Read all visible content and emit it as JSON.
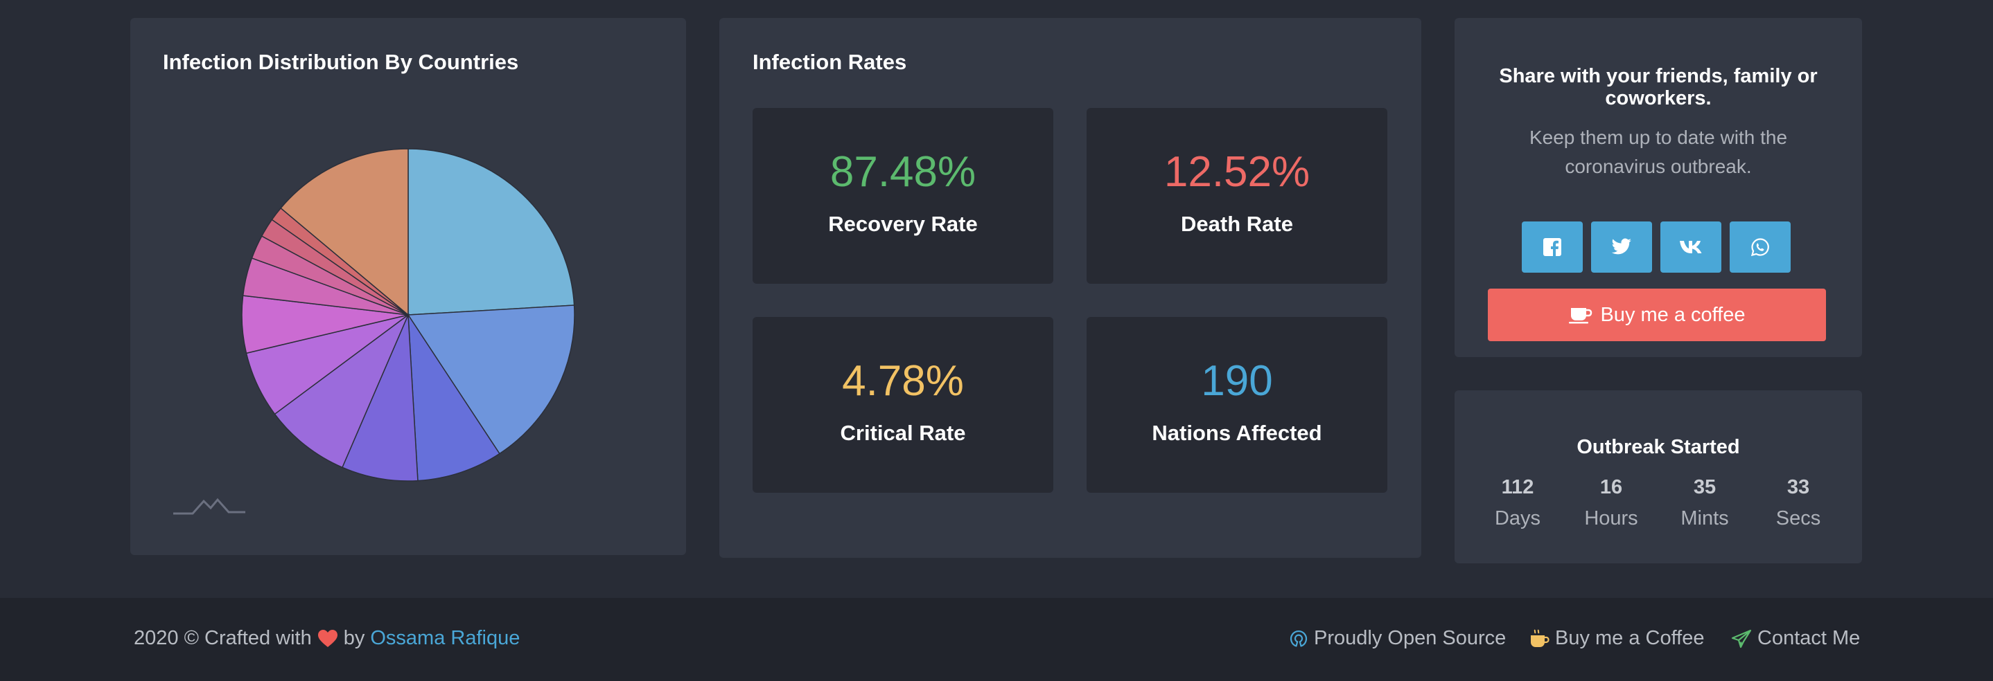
{
  "distribution": {
    "title": "Infection Distribution By Countries",
    "chart_data": {
      "type": "pie",
      "title": "",
      "values": [
        26,
        18,
        9,
        8,
        9,
        7,
        6,
        4,
        2.5,
        2,
        1.5,
        15
      ],
      "colors": [
        "#75b5d9",
        "#6e95dc",
        "#6670da",
        "#7a67da",
        "#9b6bdc",
        "#b56cdc",
        "#cb6bd2",
        "#cf69b8",
        "#d0679e",
        "#cf6680",
        "#d06a6f",
        "#d28f6d"
      ]
    }
  },
  "rates": {
    "title": "Infection Rates",
    "items": [
      {
        "value": "87.48%",
        "label": "Recovery Rate",
        "color": "#5cba6e"
      },
      {
        "value": "12.52%",
        "label": "Death Rate",
        "color": "#ee6a66"
      },
      {
        "value": "4.78%",
        "label": "Critical Rate",
        "color": "#f2c264"
      },
      {
        "value": "190",
        "label": "Nations Affected",
        "color": "#4aa7d7"
      }
    ]
  },
  "share": {
    "title": "Share with your friends, family or coworkers.",
    "subtitle": "Keep them up to date with the coronavirus outbreak.",
    "buttons": [
      "facebook-icon",
      "twitter-icon",
      "vk-icon",
      "whatsapp-icon"
    ],
    "coffee_label": "Buy me a coffee"
  },
  "outbreak": {
    "title": "Outbreak Started",
    "items": [
      {
        "num": "112",
        "unit": "Days"
      },
      {
        "num": "16",
        "unit": "Hours"
      },
      {
        "num": "35",
        "unit": "Mints"
      },
      {
        "num": "33",
        "unit": "Secs"
      }
    ]
  },
  "footer": {
    "year_text": "2020 © Crafted with",
    "by_text": "by",
    "author": "Ossama Rafique",
    "links": [
      "Proudly Open Source",
      "Buy me a Coffee",
      "Contact Me"
    ]
  }
}
